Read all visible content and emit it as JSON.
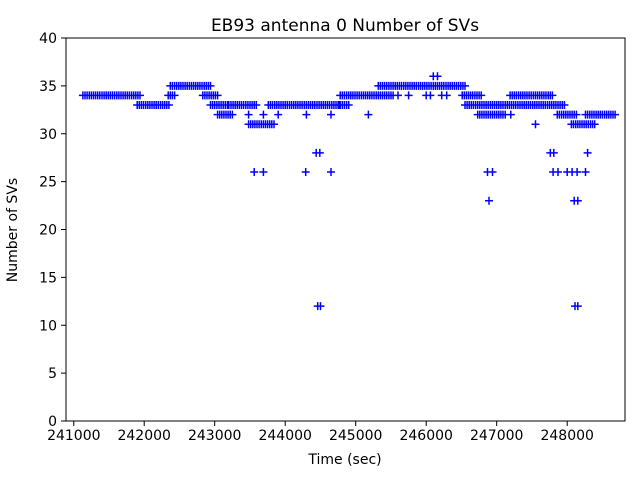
{
  "figure": {
    "background": "#ffffff",
    "axis_color": "#000000"
  },
  "chart_data": {
    "type": "scatter",
    "marker": "plus",
    "marker_color": "#0000ff",
    "title": "EB93 antenna 0 Number of SVs",
    "xlabel": "Time (sec)",
    "ylabel": "Number of SVs",
    "xlim": [
      240890,
      248820
    ],
    "ylim": [
      0,
      40
    ],
    "xticks": [
      241000,
      242000,
      243000,
      244000,
      245000,
      246000,
      247000,
      248000
    ],
    "yticks": [
      0,
      5,
      10,
      15,
      20,
      25,
      30,
      35,
      40
    ],
    "grid": false,
    "legend": "none",
    "sample_step_sec": 30,
    "runs_comment": "continuous stretches of samples [t_start_sec, t_end_sec, num_svs]",
    "runs": [
      [
        241130,
        241960,
        34
      ],
      [
        241900,
        242370,
        33
      ],
      [
        242340,
        242450,
        34
      ],
      [
        242370,
        242940,
        35
      ],
      [
        242830,
        243040,
        34
      ],
      [
        242940,
        243200,
        33
      ],
      [
        243040,
        243260,
        32
      ],
      [
        243200,
        243610,
        33
      ],
      [
        243480,
        243860,
        31
      ],
      [
        243760,
        244880,
        33
      ],
      [
        244780,
        245530,
        34
      ],
      [
        245320,
        246550,
        35
      ],
      [
        246510,
        246800,
        34
      ],
      [
        246550,
        247120,
        33
      ],
      [
        246730,
        247120,
        32
      ],
      [
        247120,
        247970,
        33
      ],
      [
        247190,
        247800,
        34
      ],
      [
        247860,
        248130,
        32
      ],
      [
        248060,
        248400,
        31
      ],
      [
        248260,
        248680,
        32
      ]
    ],
    "points_comment": "isolated samples [t_sec, num_svs]",
    "points": [
      [
        246100,
        36
      ],
      [
        246160,
        36
      ],
      [
        245600,
        34
      ],
      [
        245750,
        34
      ],
      [
        246000,
        34
      ],
      [
        246060,
        34
      ],
      [
        246220,
        34
      ],
      [
        246290,
        34
      ],
      [
        244760,
        33
      ],
      [
        244900,
        33
      ],
      [
        243480,
        32
      ],
      [
        243690,
        32
      ],
      [
        243900,
        32
      ],
      [
        244300,
        32
      ],
      [
        244650,
        32
      ],
      [
        245180,
        32
      ],
      [
        247200,
        32
      ],
      [
        247550,
        31
      ],
      [
        244440,
        28
      ],
      [
        244490,
        28
      ],
      [
        247760,
        28
      ],
      [
        247810,
        28
      ],
      [
        248290,
        28
      ],
      [
        243560,
        26
      ],
      [
        243690,
        26
      ],
      [
        244290,
        26
      ],
      [
        244650,
        26
      ],
      [
        246870,
        26
      ],
      [
        246940,
        26
      ],
      [
        247800,
        26
      ],
      [
        247870,
        26
      ],
      [
        248000,
        26
      ],
      [
        248070,
        26
      ],
      [
        248140,
        26
      ],
      [
        248260,
        26
      ],
      [
        246890,
        23
      ],
      [
        248100,
        23
      ],
      [
        248150,
        23
      ],
      [
        244460,
        12
      ],
      [
        244500,
        12
      ],
      [
        248110,
        12
      ],
      [
        248150,
        12
      ]
    ]
  }
}
